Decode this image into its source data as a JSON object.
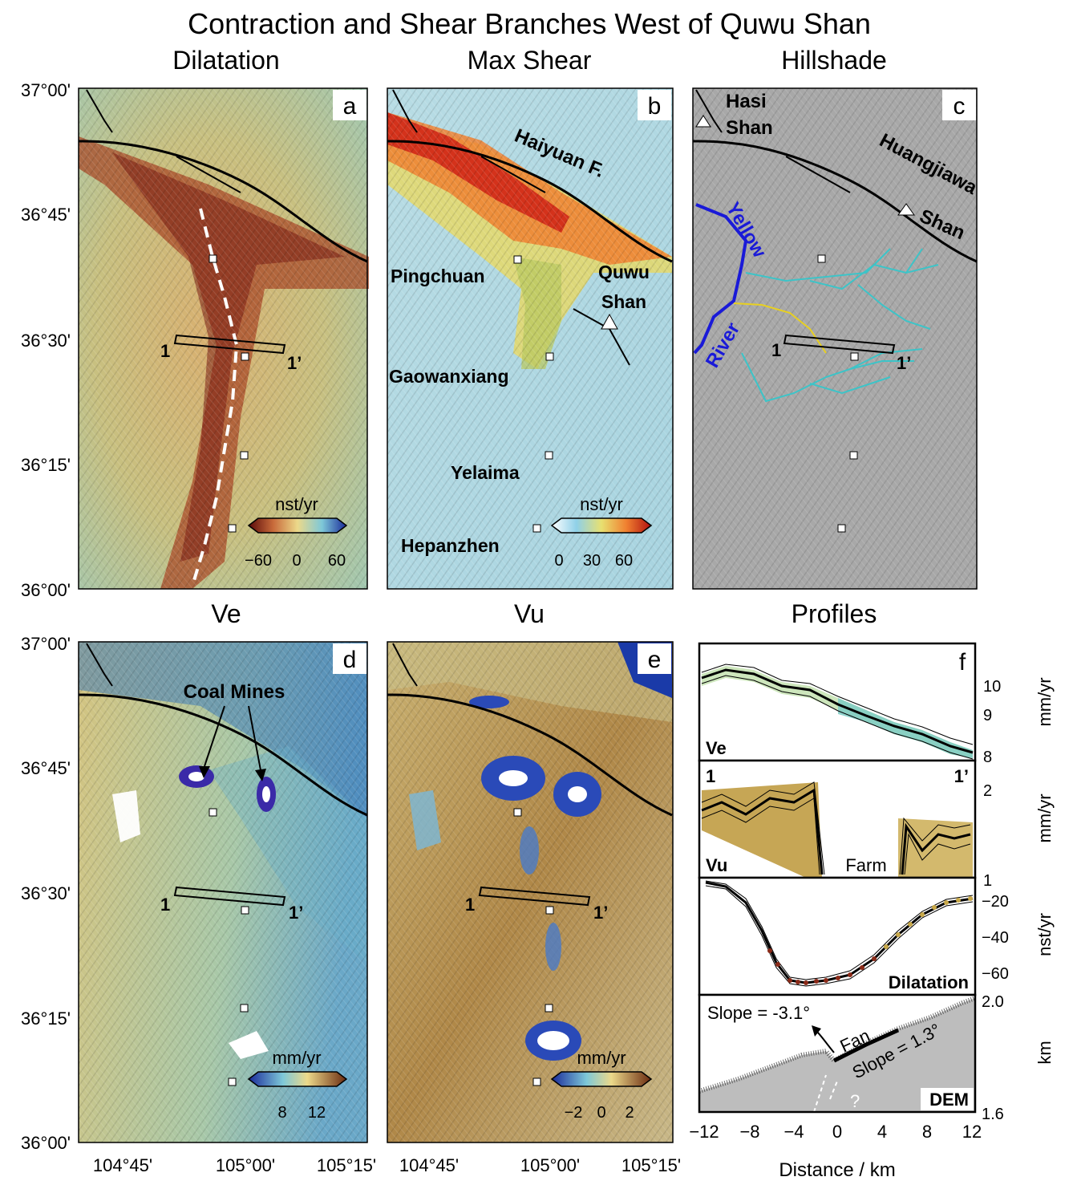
{
  "title": "Contraction and Shear Branches West of Quwu Shan",
  "panel_titles": {
    "a": "Dilatation",
    "b": "Max Shear",
    "c": "Hillshade",
    "d": "Ve",
    "e": "Vu",
    "f": "Profiles"
  },
  "panel_letters": [
    "a",
    "b",
    "c",
    "d",
    "e",
    "f"
  ],
  "lat_ticks": [
    "37°00'",
    "36°45'",
    "36°30'",
    "36°15'",
    "36°00'"
  ],
  "lon_ticks": [
    "104°45'",
    "105°00'",
    "105°15'"
  ],
  "profile_labels": {
    "start": "1",
    "end": "1’"
  },
  "map_labels": {
    "haiyuan": "Haiyuan F.",
    "pingchuan": "Pingchuan",
    "quwu1": "Quwu",
    "quwu2": "Shan",
    "gaowanxiang": "Gaowanxiang",
    "yelaima": "Yelaima",
    "hepanzhen": "Hepanzhen",
    "hasi1": "Hasi",
    "hasi2": "Shan",
    "huangjiawa": "Huangjiawa",
    "huangjiawa2": "Shan",
    "yellow": "Yellow",
    "river": "River",
    "coal_mines": "Coal Mines"
  },
  "colorbars": {
    "a": {
      "unit": "nst/yr",
      "ticks": [
        "−60",
        "0",
        "60"
      ]
    },
    "b": {
      "unit": "nst/yr",
      "ticks": [
        "0",
        "30",
        "60"
      ]
    },
    "d": {
      "unit": "mm/yr",
      "ticks": [
        "8",
        "12"
      ]
    },
    "e": {
      "unit": "mm/yr",
      "ticks": [
        "−2",
        "0",
        "2"
      ]
    }
  },
  "profiles": {
    "x_ticks": [
      "−12",
      "−8",
      "−4",
      "0",
      "4",
      "8",
      "12"
    ],
    "xlabel": "Distance / km",
    "ve": {
      "label": "Ve",
      "unit": "mm/yr",
      "ticks": [
        "10",
        "9",
        "8"
      ]
    },
    "vu": {
      "label": "Vu",
      "unit": "mm/yr",
      "ticks": [
        "2",
        "1"
      ],
      "start": "1",
      "end": "1’",
      "farm": "Farm"
    },
    "dil": {
      "label": "Dilatation",
      "unit": "nst/yr",
      "ticks": [
        "−20",
        "−40",
        "−60"
      ]
    },
    "dem": {
      "label": "DEM",
      "unit": "km",
      "ticks": [
        "2.0",
        "1.6"
      ],
      "slope1": "Slope = -3.1°",
      "slope2": "Slope = 1.3°",
      "fan": "Fan",
      "q": "?"
    }
  },
  "colors": {
    "contraction": "#8a2a18",
    "shear_hot": "#e8321e",
    "river_blue": "#1a1ad8",
    "tributary": "#3cc4c8",
    "yellow_trib": "#e8d020",
    "profile_ve": "#7ccbc4",
    "profile_vu": "#b8902a",
    "profile_dil": "#8a2a18"
  }
}
